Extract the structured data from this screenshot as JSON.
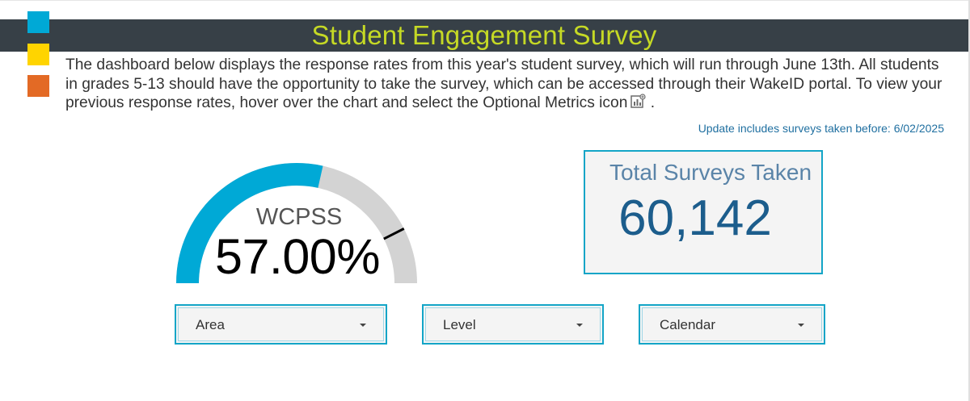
{
  "header": {
    "title": "Student Engagement Survey"
  },
  "intro": {
    "text": "The dashboard below displays the response rates from this year's student survey, which will run through June 13th. All students in grades 5-13 should have the opportunity to take the survey, which can be accessed through their WakeID portal. To view your previous response rates, hover over the chart and select the Optional Metrics icon",
    "icon": "optional-metrics-icon",
    "trailing": "."
  },
  "update_note": "Update includes surveys taken before: 6/02/2025",
  "gauge": {
    "label": "WCPSS",
    "value_text": "57.00%",
    "value": 57.0,
    "target": 85,
    "max": 100,
    "fill_color": "#00a9d6",
    "track_color": "#d3d3d3",
    "target_color": "#000000"
  },
  "total": {
    "title": "Total Surveys Taken",
    "value": "60,142"
  },
  "filters": [
    {
      "label": "Area",
      "icon": "caret-down-icon"
    },
    {
      "label": "Level",
      "icon": "caret-down-icon"
    },
    {
      "label": "Calendar",
      "icon": "caret-down-icon"
    }
  ],
  "colors": {
    "title_bar": "#374047",
    "title_text": "#c5d925",
    "square_blue": "#00a9d6",
    "square_yellow": "#ffd400",
    "square_orange": "#e36a25",
    "accent": "#13a5c7"
  }
}
